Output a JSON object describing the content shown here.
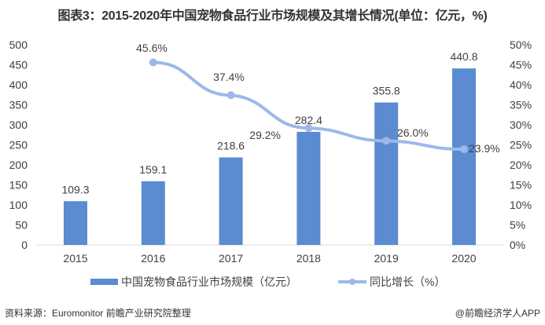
{
  "title": "图表3：2015-2020年中国宠物食品行业市场规模及其增长情况(单位：亿元，%)",
  "source": "资料来源：Euromonitor 前瞻产业研究院整理",
  "brand": "@前瞻经济学人APP",
  "colors": {
    "bar": "#5b8bd0",
    "line": "#9db8e8"
  },
  "chart_data": {
    "type": "bar+line",
    "title": "图表3：2015-2020年中国宠物食品行业市场规模及其增长情况(单位：亿元，%)",
    "categories": [
      "2015",
      "2016",
      "2017",
      "2018",
      "2019",
      "2020"
    ],
    "series": [
      {
        "name": "中国宠物食品行业市场规模（亿元）",
        "type": "bar",
        "axis": "left",
        "values": [
          109.3,
          159.1,
          218.6,
          282.4,
          355.8,
          440.8
        ],
        "labels": [
          "109.3",
          "159.1",
          "218.6",
          "282.4",
          "355.8",
          "440.8"
        ]
      },
      {
        "name": "同比增长（%）",
        "type": "line",
        "axis": "right",
        "values": [
          null,
          45.6,
          37.4,
          29.2,
          26.0,
          23.9
        ],
        "labels": [
          "",
          "45.6%",
          "37.4%",
          "29.2%",
          "26.0%",
          "23.9%"
        ]
      }
    ],
    "left_axis": {
      "ylim": [
        0,
        500
      ],
      "ticks": [
        "0",
        "50",
        "100",
        "150",
        "200",
        "250",
        "300",
        "350",
        "400",
        "450",
        "500"
      ]
    },
    "right_axis": {
      "ylim": [
        0,
        50
      ],
      "ticks": [
        "0%",
        "5%",
        "10%",
        "15%",
        "20%",
        "25%",
        "30%",
        "35%",
        "40%",
        "45%",
        "50%"
      ]
    },
    "grid": false,
    "legend_position": "bottom",
    "legend": [
      "中国宠物食品行业市场规模（亿元）",
      "同比增长（%）"
    ]
  }
}
